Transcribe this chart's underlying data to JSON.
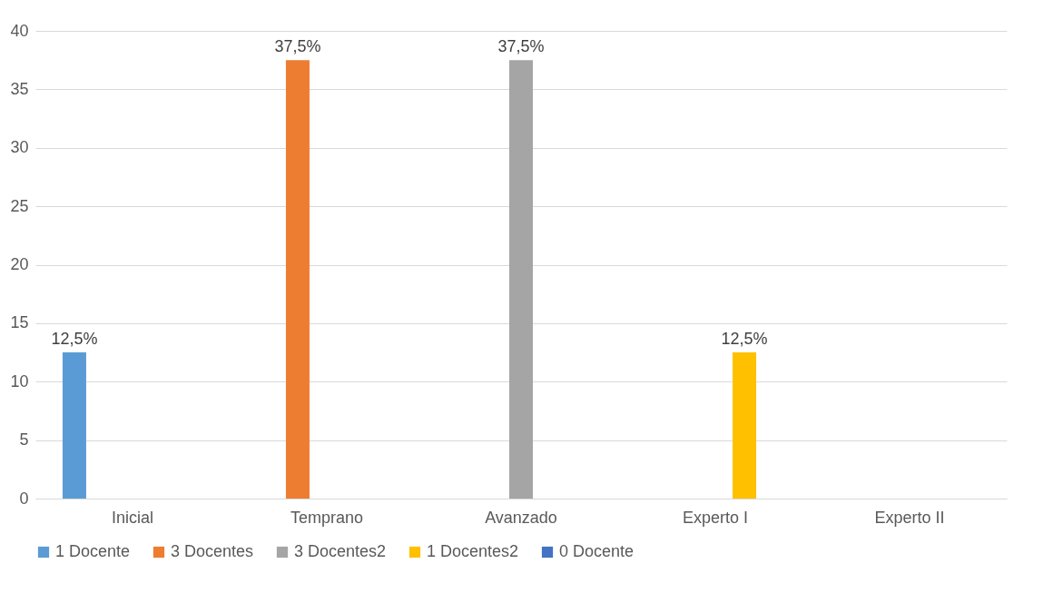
{
  "chart_data": {
    "type": "bar",
    "categories": [
      "Inicial",
      "Temprano",
      "Avanzado",
      "Experto I",
      "Experto II"
    ],
    "series": [
      {
        "name": "1 Docente",
        "color": "#5b9bd5",
        "values": [
          12.5,
          null,
          null,
          null,
          null
        ],
        "value_labels": [
          "12,5%",
          null,
          null,
          null,
          null
        ]
      },
      {
        "name": "3 Docentes",
        "color": "#ed7d31",
        "values": [
          null,
          37.5,
          null,
          null,
          null
        ],
        "value_labels": [
          null,
          "37,5%",
          null,
          null,
          null
        ]
      },
      {
        "name": "3 Docentes2",
        "color": "#a5a5a5",
        "values": [
          null,
          null,
          37.5,
          null,
          null
        ],
        "value_labels": [
          null,
          null,
          "37,5%",
          null,
          null
        ]
      },
      {
        "name": "1 Docentes2",
        "color": "#ffc000",
        "values": [
          null,
          null,
          null,
          12.5,
          null
        ],
        "value_labels": [
          null,
          null,
          null,
          "12,5%",
          null
        ]
      },
      {
        "name": "0 Docente",
        "color": "#4472c4",
        "values": [
          null,
          null,
          null,
          null,
          0
        ]
      }
    ],
    "ylim": [
      0,
      40
    ],
    "yticks": [
      0,
      5,
      10,
      15,
      20,
      25,
      30,
      35,
      40
    ],
    "grid": "y",
    "legend": "bottom"
  }
}
